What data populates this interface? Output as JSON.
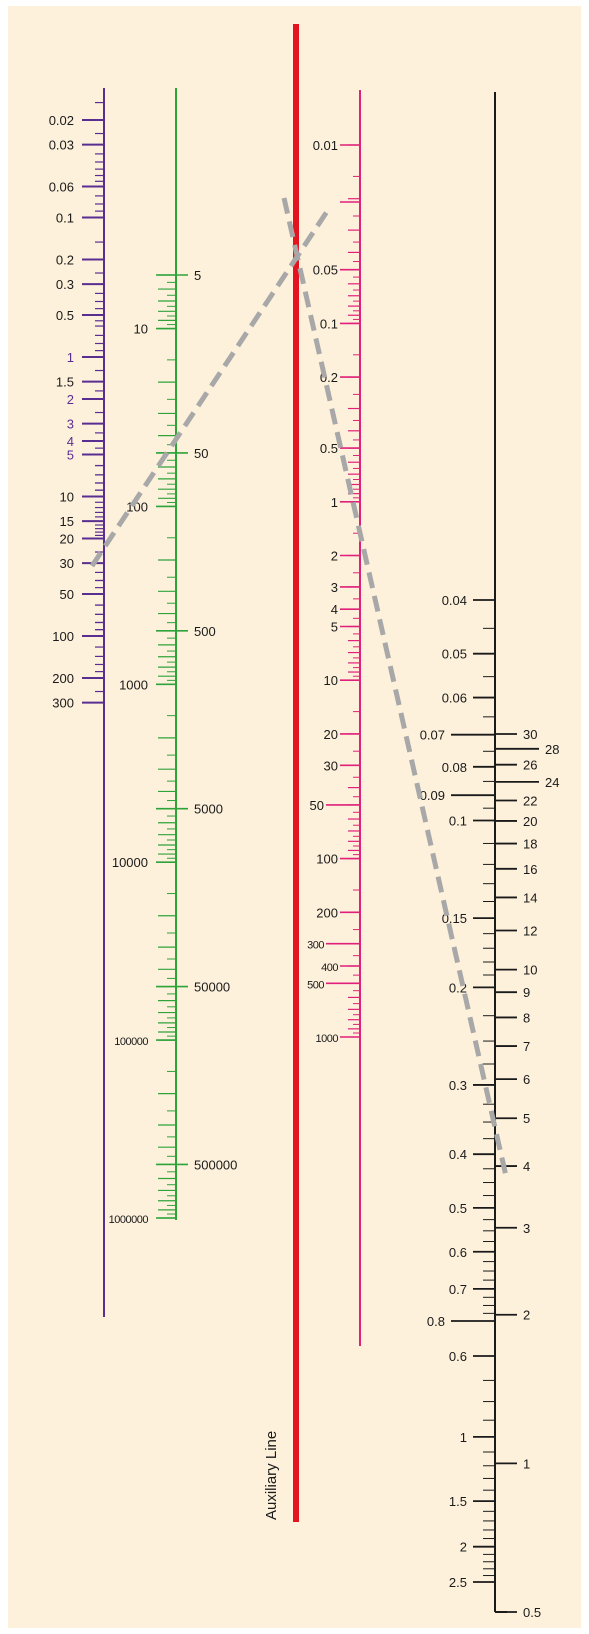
{
  "colors": {
    "background": "#fdf1dc",
    "axis1": "#5a2d91",
    "axis2": "#2ea33a",
    "auxiliary": "#e3141f",
    "axis4": "#e0207a",
    "axis5": "#1a1a1a",
    "guide": "#a8a8a8"
  },
  "auxiliary_label": "Auxiliary Line",
  "axes": [
    {
      "id": "axis1",
      "label_side": "left",
      "major": [
        {
          "label": "0.02",
          "v": 0.02,
          "color": "#1a1a1a"
        },
        {
          "label": "0.03",
          "v": 0.03,
          "color": "#1a1a1a"
        },
        {
          "label": "0.06",
          "v": 0.06,
          "color": "#1a1a1a"
        },
        {
          "label": "0.1",
          "v": 0.1,
          "color": "#1a1a1a"
        },
        {
          "label": "0.2",
          "v": 0.2,
          "color": "#1a1a1a"
        },
        {
          "label": "0.3",
          "v": 0.3,
          "color": "#1a1a1a"
        },
        {
          "label": "0.5",
          "v": 0.5,
          "color": "#1a1a1a"
        },
        {
          "label": "1",
          "v": 1,
          "color": "#5a2d91"
        },
        {
          "label": "1.5",
          "v": 1.5,
          "color": "#1a1a1a"
        },
        {
          "label": "2",
          "v": 2,
          "color": "#5a2d91"
        },
        {
          "label": "3",
          "v": 3,
          "color": "#5a2d91"
        },
        {
          "label": "4",
          "v": 4,
          "color": "#5a2d91"
        },
        {
          "label": "5",
          "v": 5,
          "color": "#5a2d91"
        },
        {
          "label": "10",
          "v": 10,
          "color": "#1a1a1a"
        },
        {
          "label": "15",
          "v": 15,
          "color": "#1a1a1a"
        },
        {
          "label": "20",
          "v": 20,
          "color": "#1a1a1a"
        },
        {
          "label": "30",
          "v": 30,
          "color": "#1a1a1a"
        },
        {
          "label": "50",
          "v": 50,
          "color": "#1a1a1a"
        },
        {
          "label": "100",
          "v": 100,
          "color": "#1a1a1a"
        },
        {
          "label": "200",
          "v": 200,
          "color": "#1a1a1a"
        },
        {
          "label": "300",
          "v": 300,
          "color": "#1a1a1a"
        }
      ]
    },
    {
      "id": "axis2",
      "left_labels": [
        "10",
        "100",
        "1000",
        "10000",
        "100000",
        "1000000"
      ],
      "right_labels": [
        "5",
        "50",
        "500",
        "5000",
        "50000",
        "500000"
      ]
    },
    {
      "id": "axis4",
      "label_side": "left",
      "major": [
        {
          "label": "0.01",
          "v": 0.01
        },
        {
          "label": "0.05",
          "v": 0.05
        },
        {
          "label": "0.1",
          "v": 0.1
        },
        {
          "label": "0.2",
          "v": 0.2
        },
        {
          "label": "0.5",
          "v": 0.5
        },
        {
          "label": "1",
          "v": 1
        },
        {
          "label": "2",
          "v": 2
        },
        {
          "label": "3",
          "v": 3
        },
        {
          "label": "4",
          "v": 4
        },
        {
          "label": "5",
          "v": 5
        },
        {
          "label": "10",
          "v": 10
        },
        {
          "label": "20",
          "v": 20
        },
        {
          "label": "30",
          "v": 30
        },
        {
          "label": "50",
          "v": 50
        },
        {
          "label": "100",
          "v": 100
        },
        {
          "label": "200",
          "v": 200
        },
        {
          "label": "300",
          "v": 300
        },
        {
          "label": "400",
          "v": 400
        },
        {
          "label": "500",
          "v": 500
        },
        {
          "label": "1000",
          "v": 1000
        }
      ]
    },
    {
      "id": "axis5",
      "left_top": [
        {
          "label": "0.04",
          "v": 0.04
        },
        {
          "label": "0.05",
          "v": 0.05
        },
        {
          "label": "0.06",
          "v": 0.06
        },
        {
          "label": "0.07",
          "v": 0.07
        },
        {
          "label": "0.08",
          "v": 0.08
        },
        {
          "label": "0.09",
          "v": 0.09
        },
        {
          "label": "0.1",
          "v": 0.1
        },
        {
          "label": "0.15",
          "v": 0.15
        },
        {
          "label": "0.2",
          "v": 0.2
        },
        {
          "label": "0.3",
          "v": 0.3
        },
        {
          "label": "0.4",
          "v": 0.4
        },
        {
          "label": "0.5",
          "v": 0.5
        },
        {
          "label": "0.6",
          "v": 0.6
        },
        {
          "label": "0.7",
          "v": 0.7
        },
        {
          "label": "0.8",
          "v": 0.8
        }
      ],
      "left_bottom": [
        {
          "label": "0.6",
          "v": 0.6
        },
        {
          "label": "1",
          "v": 1
        },
        {
          "label": "1.5",
          "v": 1.5
        },
        {
          "label": "2",
          "v": 2
        },
        {
          "label": "2.5",
          "v": 2.5
        }
      ],
      "right": [
        {
          "label": "30",
          "v": 30
        },
        {
          "label": "28",
          "v": 28
        },
        {
          "label": "26",
          "v": 26
        },
        {
          "label": "24",
          "v": 24
        },
        {
          "label": "22",
          "v": 22
        },
        {
          "label": "20",
          "v": 20
        },
        {
          "label": "18",
          "v": 18
        },
        {
          "label": "16",
          "v": 16
        },
        {
          "label": "14",
          "v": 14
        },
        {
          "label": "12",
          "v": 12
        },
        {
          "label": "10",
          "v": 10
        },
        {
          "label": "9",
          "v": 9
        },
        {
          "label": "8",
          "v": 8
        },
        {
          "label": "7",
          "v": 7
        },
        {
          "label": "6",
          "v": 6
        },
        {
          "label": "5",
          "v": 5
        },
        {
          "label": "4",
          "v": 4
        },
        {
          "label": "3",
          "v": 3
        },
        {
          "label": "2",
          "v": 2
        },
        {
          "label": "1",
          "v": 1
        },
        {
          "label": "0.5",
          "v": 0.5
        }
      ]
    }
  ]
}
